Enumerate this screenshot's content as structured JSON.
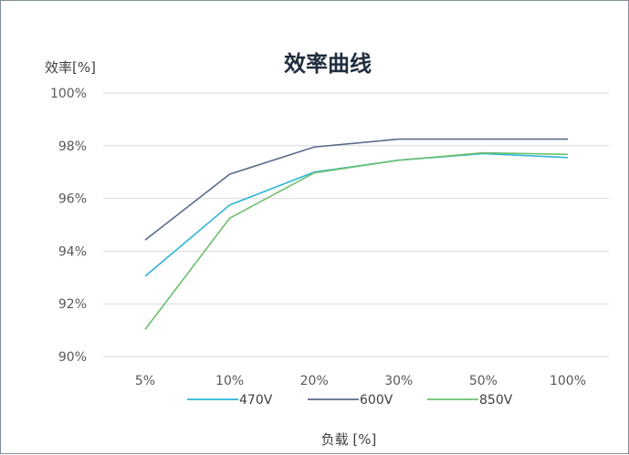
{
  "chart_data": {
    "type": "line",
    "title": "效率曲线",
    "xlabel": "负载 [%]",
    "ylabel": "效率[%]",
    "categories": [
      "5%",
      "10%",
      "20%",
      "30%",
      "50%",
      "100%"
    ],
    "ylim": [
      90,
      100
    ],
    "yticks": [
      {
        "value": 90,
        "label": "90%"
      },
      {
        "value": 92,
        "label": "92%"
      },
      {
        "value": 94,
        "label": "94%"
      },
      {
        "value": 96,
        "label": "96%"
      },
      {
        "value": 98,
        "label": "98%"
      },
      {
        "value": 100,
        "label": "100%"
      }
    ],
    "grid": true,
    "legend": "bottom",
    "series": [
      {
        "name": "470V",
        "color": "#2eb5d6",
        "values": [
          93.05,
          95.75,
          97.0,
          97.45,
          97.7,
          97.55
        ]
      },
      {
        "name": "600V",
        "color": "#5b6c8c",
        "values": [
          94.42,
          96.92,
          97.95,
          98.25,
          98.25,
          98.25
        ]
      },
      {
        "name": "850V",
        "color": "#6cc06c",
        "values": [
          91.03,
          95.25,
          96.97,
          97.45,
          97.73,
          97.67
        ]
      }
    ]
  }
}
